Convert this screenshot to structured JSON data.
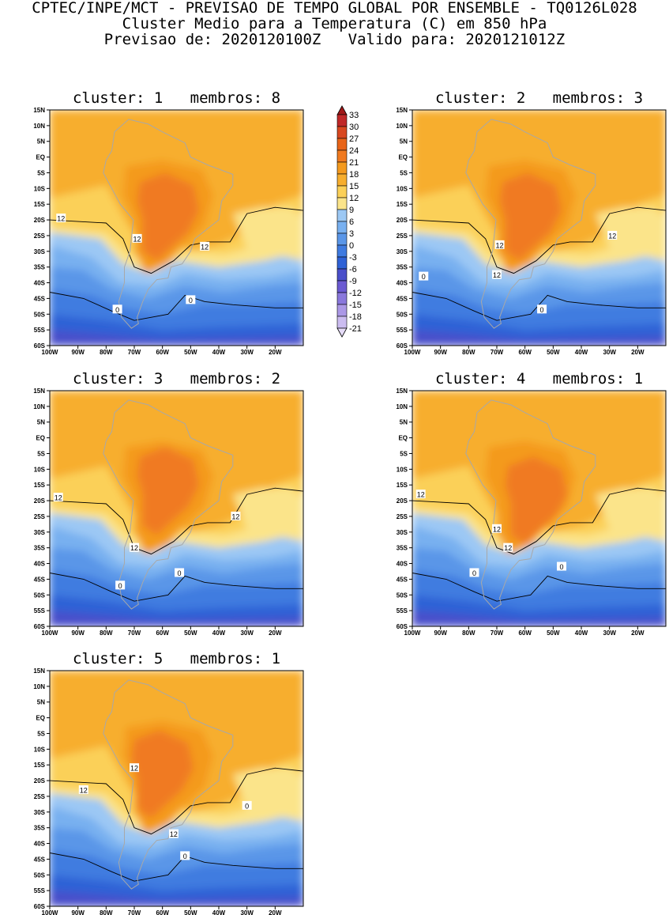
{
  "header": {
    "line1": "CPTEC/INPE/MCT - PREVISAO DE TEMPO GLOBAL POR ENSEMBLE - TQ0126L028",
    "line2": "Cluster Medio para a Temperatura (C) em 850 hPa",
    "line3": "Previsao de: 2020120100Z   Valido para: 2020121012Z"
  },
  "colorbar": {
    "labels": [
      "33",
      "30",
      "27",
      "24",
      "21",
      "18",
      "15",
      "12",
      "9",
      "6",
      "3",
      "0",
      "-3",
      "-6",
      "-9",
      "-12",
      "-15",
      "-18",
      "-21"
    ],
    "colors": [
      "#a01818",
      "#c02828",
      "#d84820",
      "#e86418",
      "#f07a20",
      "#f49a1e",
      "#f7ae2e",
      "#fbd058",
      "#fbe48a",
      "#9cc8f4",
      "#78b0f0",
      "#5a96e8",
      "#3f7be0",
      "#2f62d6",
      "#4a4fca",
      "#6b5ad2",
      "#8a78dc",
      "#ab98e6",
      "#cbbcf0",
      "#e6dcf8"
    ]
  },
  "axes": {
    "lat_labels": [
      "15N",
      "10N",
      "5N",
      "EQ",
      "5S",
      "10S",
      "15S",
      "20S",
      "25S",
      "30S",
      "35S",
      "40S",
      "45S",
      "50S",
      "55S",
      "60S"
    ],
    "lon_labels": [
      "100W",
      "90W",
      "80W",
      "70W",
      "60W",
      "50W",
      "40W",
      "30W",
      "20W"
    ]
  },
  "panels": [
    {
      "title": "cluster: 1   membros: 8",
      "contour_labels": [
        "12",
        "12",
        "12",
        "0",
        "0"
      ]
    },
    {
      "title": "cluster: 2   membros: 3",
      "contour_labels": [
        "12",
        "12",
        "12",
        "0",
        "0"
      ]
    },
    {
      "title": "cluster: 3   membros: 2",
      "contour_labels": [
        "12",
        "12",
        "12",
        "0",
        "0"
      ]
    },
    {
      "title": "cluster: 4   membros: 1",
      "contour_labels": [
        "12",
        "12",
        "12",
        "0",
        "0"
      ]
    },
    {
      "title": "cluster: 5   membros: 1",
      "contour_labels": [
        "12",
        "12",
        "12",
        "0",
        "0"
      ]
    }
  ]
}
